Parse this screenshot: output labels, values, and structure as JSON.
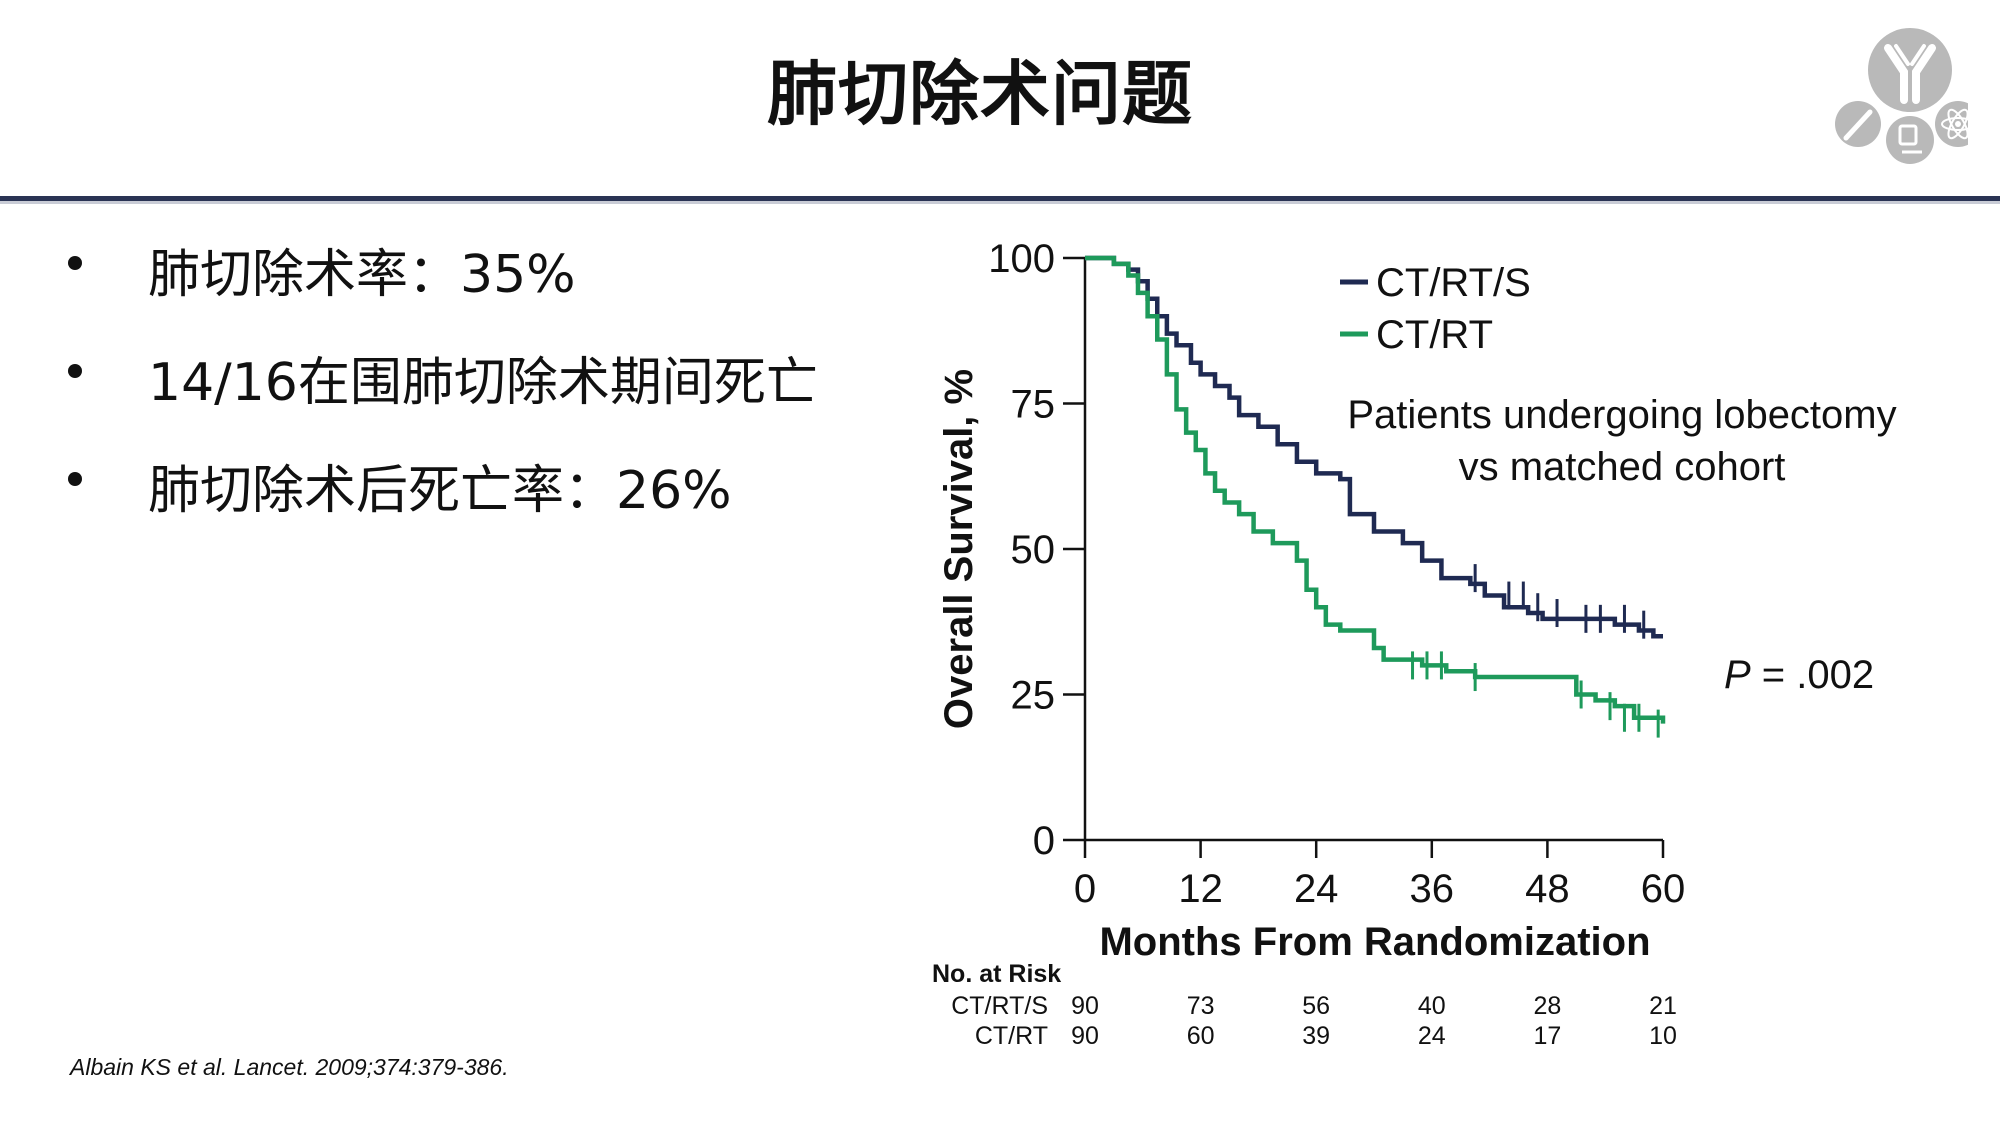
{
  "slide": {
    "title": "肺切除术问题",
    "bullets": [
      {
        "text": "肺切除术率：35%"
      },
      {
        "text": "14/16在围肺切除术期间死亡"
      },
      {
        "text": "肺切除术后死亡率：26%"
      }
    ],
    "citation": "Albain KS et al. Lancet. 2009;374:379-386.",
    "logo_icons": [
      "antibody-icon",
      "syringe-icon",
      "microscope-icon",
      "atom-icon"
    ]
  },
  "colors": {
    "title_rule": "#2a3354",
    "series_ctrts": "#1f2a52",
    "series_ctrt": "#1e9a5b",
    "logo_gray": "#b9b9b9"
  },
  "chart_data": {
    "type": "line",
    "xlabel": "Months From Randomization",
    "ylabel": "Overall Survival, %",
    "xlim": [
      0,
      60
    ],
    "ylim": [
      0,
      100
    ],
    "xticks": [
      "0",
      "12",
      "24",
      "36",
      "48",
      "60"
    ],
    "yticks": [
      "0",
      "25",
      "50",
      "75",
      "100"
    ],
    "annotation": "Patients undergoing lobectomy vs matched cohort",
    "annotation_lines": [
      "Patients undergoing lobectomy",
      "vs matched cohort"
    ],
    "p_value": {
      "label": "P",
      "value": " = .002"
    },
    "legend_position": "top-center",
    "series": [
      {
        "name": "CT/RT/S",
        "color": "#1f2a52",
        "x": [
          0,
          3,
          4.5,
          5.5,
          6.5,
          7.5,
          8.5,
          9.5,
          11,
          12,
          13.5,
          15,
          16,
          18,
          20,
          22,
          24,
          26.5,
          27.5,
          30,
          33,
          35,
          37,
          40,
          41.5,
          43.5,
          46,
          47.5,
          52,
          55,
          57.5,
          59,
          60
        ],
        "y": [
          100,
          99,
          98,
          96,
          93,
          90,
          87,
          85,
          82,
          80,
          78,
          76,
          73,
          71,
          68,
          65,
          63,
          62,
          56,
          53,
          51,
          48,
          45,
          44,
          42,
          40,
          39,
          38,
          38,
          37,
          36,
          35,
          35
        ],
        "censor_x": [
          40.5,
          44,
          45.5,
          47,
          49,
          52,
          53.5,
          56,
          58
        ],
        "censor_y": [
          45,
          42,
          42,
          40,
          39,
          38,
          38,
          38,
          37
        ]
      },
      {
        "name": "CT/RT",
        "color": "#1e9a5b",
        "x": [
          0,
          3,
          4.5,
          5.5,
          6.5,
          7.5,
          8.5,
          9.5,
          10.5,
          11.5,
          12.5,
          13.5,
          14.5,
          16,
          17.5,
          19.5,
          22,
          23,
          24,
          25,
          26.5,
          30,
          31,
          35,
          37.5,
          40.5,
          46,
          51,
          53,
          55,
          57,
          60
        ],
        "y": [
          100,
          99,
          97,
          94,
          90,
          86,
          80,
          74,
          70,
          67,
          63,
          60,
          58,
          56,
          53,
          51,
          48,
          43,
          40,
          37,
          36,
          33,
          31,
          30,
          29,
          28,
          28,
          25,
          24,
          23,
          21,
          20
        ],
        "censor_x": [
          34,
          35.5,
          37,
          40.5,
          51.5,
          54.5,
          56,
          57.5,
          59.5
        ],
        "censor_y": [
          30,
          30,
          30,
          28,
          25,
          23,
          21,
          21,
          20
        ]
      }
    ],
    "risk_table": {
      "heading": "No. at Risk",
      "times": [
        0,
        12,
        24,
        36,
        48,
        60
      ],
      "rows": [
        {
          "label": "CT/RT/S",
          "values": [
            "90",
            "73",
            "56",
            "40",
            "28",
            "21"
          ]
        },
        {
          "label": "CT/RT",
          "values": [
            "90",
            "60",
            "39",
            "24",
            "17",
            "10"
          ]
        }
      ]
    }
  }
}
